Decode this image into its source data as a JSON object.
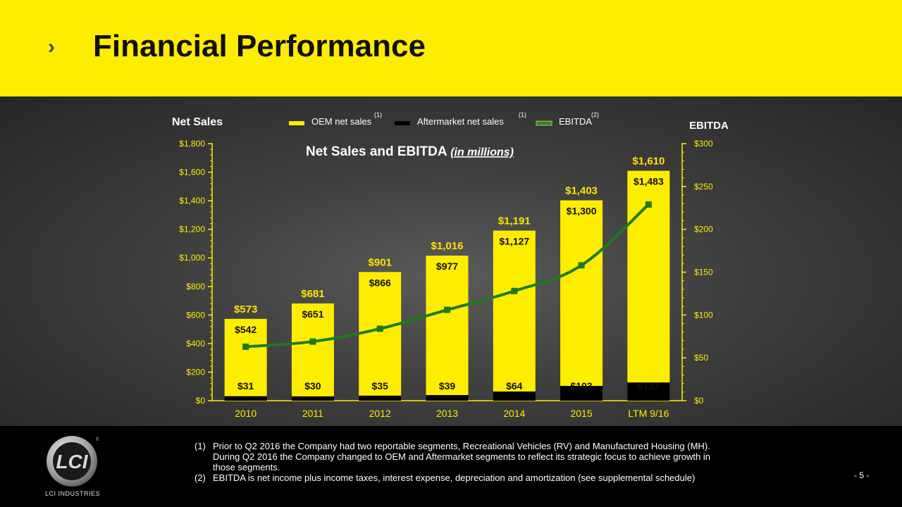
{
  "header": {
    "title": "Financial Performance",
    "chevron": "chevron-right-icon"
  },
  "colors": {
    "header_bg": "#ffed00",
    "oem": "#ffed00",
    "aftermarket": "#000000",
    "ebitda": "#1e7a1e",
    "total_label": "#ffe400"
  },
  "chart_data": {
    "type": "bar",
    "title": "Net Sales and EBITDA",
    "title_suffix": "(in millions)",
    "y_left_title": "Net Sales",
    "y_right_title": "EBITDA",
    "categories": [
      "2010",
      "2011",
      "2012",
      "2013",
      "2014",
      "2015",
      "LTM 9/16"
    ],
    "series": [
      {
        "name": "Aftermarket net sales",
        "footnote": "(1)",
        "values": [
          31,
          30,
          35,
          39,
          64,
          103,
          127
        ],
        "labels": [
          "$31",
          "$30",
          "$35",
          "$39",
          "$64",
          "$103",
          "$127"
        ]
      },
      {
        "name": "OEM net sales",
        "footnote": "(1)",
        "values": [
          542,
          651,
          866,
          977,
          1127,
          1300,
          1483
        ],
        "labels": [
          "$542",
          "$651",
          "$866",
          "$977",
          "$1,127",
          "$1,300",
          "$1,483"
        ]
      },
      {
        "name": "EBITDA",
        "footnote": "(2)",
        "axis": "right",
        "values": [
          63,
          69,
          84,
          106,
          128,
          158,
          229
        ]
      }
    ],
    "legend_order": [
      1,
      0,
      2
    ],
    "totals": {
      "values": [
        573,
        681,
        901,
        1016,
        1191,
        1403,
        1610
      ],
      "labels": [
        "$573",
        "$681",
        "$901",
        "$1,016",
        "$1,191",
        "$1,403",
        "$1,610"
      ]
    },
    "y_left": {
      "min": 0,
      "max": 1800,
      "step": 200,
      "tick_labels": [
        "$0",
        "$200",
        "$400",
        "$600",
        "$800",
        "$1,000",
        "$1,200",
        "$1,400",
        "$1,600",
        "$1,800"
      ]
    },
    "y_right": {
      "min": 0,
      "max": 300,
      "step": 50,
      "tick_labels": [
        "$0",
        "$50",
        "$100",
        "$150",
        "$200",
        "$250",
        "$300"
      ]
    }
  },
  "footnotes": [
    {
      "num": "(1)",
      "text": "Prior to Q2 2016 the Company had two reportable segments, Recreational Vehicles (RV) and Manufactured Housing (MH).  During Q2 2016 the Company changed to OEM and Aftermarket segments to reflect its strategic focus to achieve growth in those segments."
    },
    {
      "num": "(2)",
      "text": "EBITDA is net income plus income taxes, interest expense,  depreciation and amortization (see supplemental schedule)"
    }
  ],
  "logo": {
    "text": "LCI INDUSTRIES",
    "mark": "LCI"
  },
  "page": {
    "number": "- 5 -"
  }
}
